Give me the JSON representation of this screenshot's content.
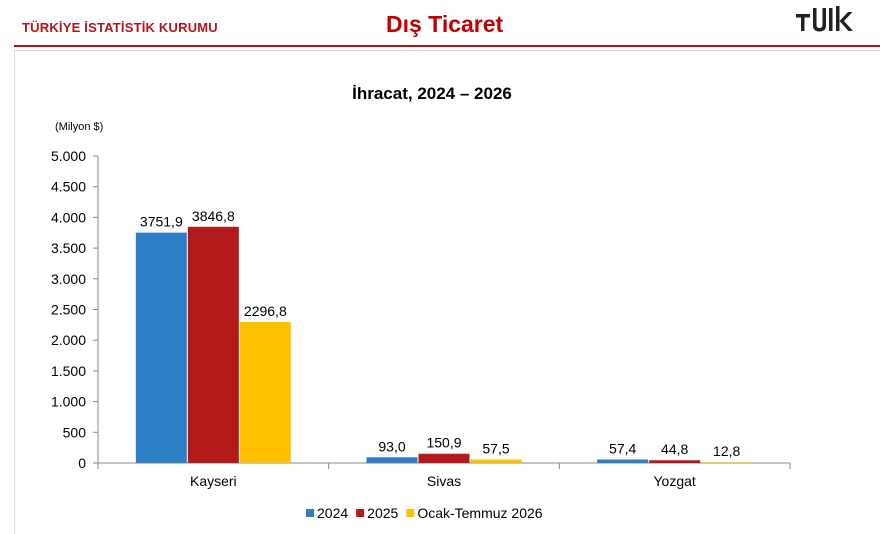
{
  "header": {
    "organization": "TÜRKİYE İSTATİSTİK KURUMU",
    "title": "Dış Ticaret",
    "logo_text": "TÜİK"
  },
  "colors": {
    "brand_red": "#b0171c",
    "title_red": "#c00000",
    "series_2024": "#2e80c6",
    "series_2025": "#b31b1b",
    "series_2026": "#ffc000"
  },
  "chart_data": {
    "type": "bar",
    "title": "İhracat, 2024 – 2026",
    "unit_label": "(Milyon $)",
    "xlabel": "",
    "ylabel": "",
    "ylim": [
      0,
      5000
    ],
    "yticks": [
      0,
      500,
      1000,
      1500,
      2000,
      2500,
      3000,
      3500,
      4000,
      4500,
      5000
    ],
    "ytick_labels": [
      "0",
      "500",
      "1.000",
      "1.500",
      "2.000",
      "2.500",
      "3.000",
      "3.500",
      "4.000",
      "4.500",
      "5.000"
    ],
    "grid": false,
    "legend_position": "bottom",
    "categories": [
      "Kayseri",
      "Sivas",
      "Yozgat"
    ],
    "series": [
      {
        "name": "2024",
        "color": "#2e80c6",
        "values": [
          3751.9,
          93.0,
          57.4
        ],
        "labels": [
          "3751,9",
          "93,0",
          "57,4"
        ]
      },
      {
        "name": "2025",
        "color": "#b31b1b",
        "values": [
          3846.8,
          150.9,
          44.8
        ],
        "labels": [
          "3846,8",
          "150,9",
          "44,8"
        ]
      },
      {
        "name": "Ocak-Temmuz 2026",
        "color": "#ffc000",
        "values": [
          2296.8,
          57.5,
          12.8
        ],
        "labels": [
          "2296,8",
          "57,5",
          "12,8"
        ]
      }
    ]
  }
}
